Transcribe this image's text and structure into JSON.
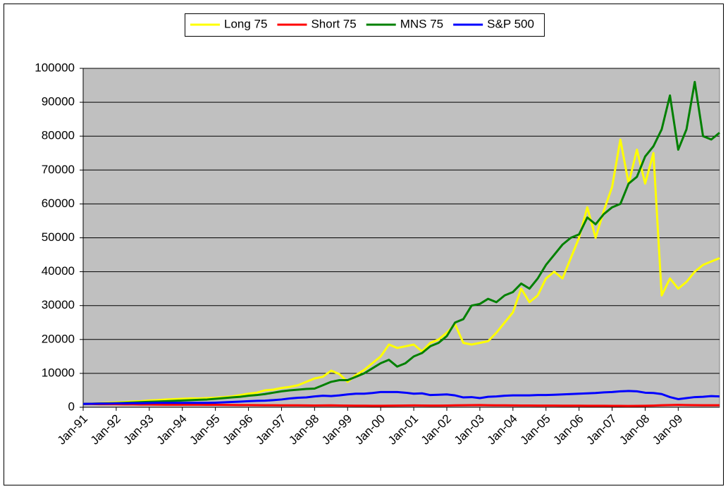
{
  "chart_data": {
    "type": "line",
    "categories": [
      "Jan-91",
      null,
      null,
      null,
      "Jan-92",
      null,
      null,
      null,
      "Jan-93",
      null,
      null,
      null,
      "Jan-94",
      null,
      null,
      null,
      "Jan-95",
      null,
      null,
      null,
      "Jan-96",
      null,
      null,
      null,
      "Jan-97",
      null,
      null,
      null,
      "Jan-98",
      null,
      null,
      null,
      "Jan-99",
      null,
      null,
      null,
      "Jan-00",
      null,
      null,
      null,
      "Jan-01",
      null,
      null,
      null,
      "Jan-02",
      null,
      null,
      null,
      "Jan-03",
      null,
      null,
      null,
      "Jan-04",
      null,
      null,
      null,
      "Jan-05",
      null,
      null,
      null,
      "Jan-06",
      null,
      null,
      null,
      "Jan-07",
      null,
      null,
      null,
      "Jan-08",
      null,
      null,
      null,
      "Jan-09",
      null,
      null,
      null,
      null,
      null
    ],
    "series": [
      {
        "name": "Long 75",
        "color": "#ffff00",
        "values": [
          1000,
          1100,
          1200,
          1300,
          1400,
          1500,
          1700,
          1800,
          2000,
          2100,
          2300,
          2400,
          2500,
          2600,
          2600,
          2700,
          2800,
          3000,
          3200,
          3600,
          4000,
          4300,
          5000,
          5200,
          5700,
          6000,
          6500,
          7500,
          8500,
          9000,
          10800,
          9800,
          7500,
          9500,
          11000,
          13000,
          15000,
          18500,
          17500,
          18000,
          18500,
          16500,
          19000,
          20000,
          22000,
          24500,
          19000,
          18500,
          19000,
          19500,
          22000,
          25000,
          28000,
          35000,
          31000,
          33000,
          38000,
          40000,
          38000,
          44000,
          50000,
          59000,
          50000,
          58000,
          65000,
          79000,
          66000,
          76000,
          66000,
          75000,
          33000,
          38000,
          35000,
          37000,
          40000,
          42000,
          43000,
          44000
        ]
      },
      {
        "name": "Short 75",
        "color": "#ff0000",
        "values": [
          1000,
          950,
          900,
          900,
          900,
          850,
          850,
          800,
          800,
          780,
          760,
          750,
          750,
          760,
          760,
          740,
          720,
          700,
          680,
          660,
          640,
          620,
          600,
          600,
          580,
          560,
          560,
          540,
          520,
          540,
          560,
          520,
          500,
          480,
          460,
          450,
          440,
          480,
          500,
          520,
          540,
          520,
          500,
          500,
          520,
          560,
          600,
          620,
          640,
          600,
          580,
          560,
          540,
          520,
          520,
          500,
          500,
          490,
          480,
          470,
          460,
          450,
          440,
          430,
          420,
          410,
          400,
          420,
          450,
          500,
          600,
          650,
          700,
          650,
          620,
          600,
          600,
          590
        ]
      },
      {
        "name": "MNS 75",
        "color": "#008000",
        "values": [
          1000,
          1050,
          1100,
          1150,
          1200,
          1300,
          1400,
          1500,
          1600,
          1700,
          1800,
          1900,
          2000,
          2100,
          2200,
          2300,
          2500,
          2700,
          2900,
          3100,
          3400,
          3600,
          3900,
          4300,
          4700,
          5000,
          5200,
          5400,
          5500,
          6500,
          7500,
          8000,
          8000,
          9000,
          10000,
          11500,
          13000,
          14000,
          12000,
          13000,
          15000,
          16000,
          18000,
          19000,
          21000,
          25000,
          26000,
          30000,
          30500,
          32000,
          31000,
          33000,
          34000,
          36500,
          35000,
          38000,
          42000,
          45000,
          48000,
          50000,
          51000,
          56000,
          54000,
          57000,
          59000,
          60000,
          66000,
          68000,
          74000,
          77000,
          82000,
          92000,
          76000,
          82000,
          96000,
          80000,
          79000,
          81000
        ]
      },
      {
        "name": "S&P 500",
        "color": "#0000ff",
        "values": [
          1000,
          1050,
          1100,
          1100,
          1150,
          1150,
          1200,
          1200,
          1250,
          1300,
          1300,
          1300,
          1300,
          1300,
          1300,
          1300,
          1350,
          1450,
          1550,
          1650,
          1800,
          1900,
          1950,
          2100,
          2300,
          2600,
          2800,
          2900,
          3200,
          3400,
          3300,
          3500,
          3800,
          4000,
          4000,
          4200,
          4500,
          4500,
          4500,
          4300,
          4000,
          4100,
          3600,
          3700,
          3800,
          3500,
          2900,
          3000,
          2700,
          3100,
          3200,
          3400,
          3500,
          3500,
          3500,
          3600,
          3600,
          3700,
          3800,
          3900,
          4000,
          4100,
          4200,
          4400,
          4500,
          4700,
          4800,
          4700,
          4300,
          4200,
          3900,
          3000,
          2400,
          2700,
          3000,
          3100,
          3300,
          3200
        ]
      }
    ],
    "ylim": [
      0,
      100000
    ],
    "yticks": [
      0,
      10000,
      20000,
      30000,
      40000,
      50000,
      60000,
      70000,
      80000,
      90000,
      100000
    ],
    "grid": true,
    "legend": "top"
  }
}
